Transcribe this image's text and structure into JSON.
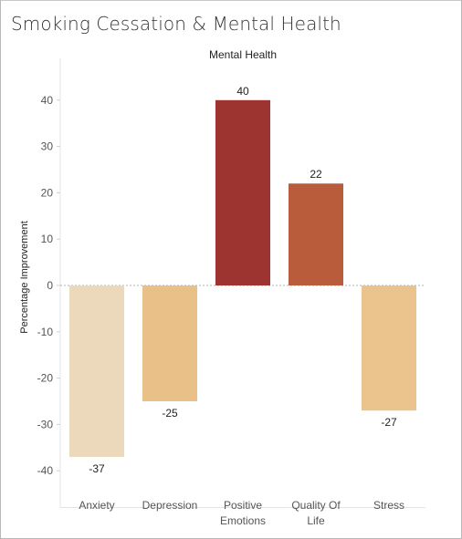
{
  "title": "Smoking Cessation & Mental Health",
  "chart_data": {
    "type": "bar",
    "header": "Mental Health",
    "ylabel": "Percentage Improvement",
    "xlabel": "",
    "categories": [
      [
        "Anxiety"
      ],
      [
        "Depression"
      ],
      [
        "Positive",
        "Emotions"
      ],
      [
        "Quality Of",
        "Life"
      ],
      [
        "Stress"
      ]
    ],
    "values": [
      -37,
      -25,
      40,
      22,
      -27
    ],
    "data_labels": [
      "-37",
      "-25",
      "40",
      "22",
      "-27"
    ],
    "colors": [
      "#ecd9bb",
      "#e9c088",
      "#9e3430",
      "#b95c3b",
      "#ebc48d"
    ],
    "yticks": [
      40,
      30,
      20,
      10,
      0,
      -10,
      -20,
      -30,
      -40
    ],
    "ylim": [
      -44,
      49
    ],
    "gridlines": false,
    "zero_line": true
  }
}
